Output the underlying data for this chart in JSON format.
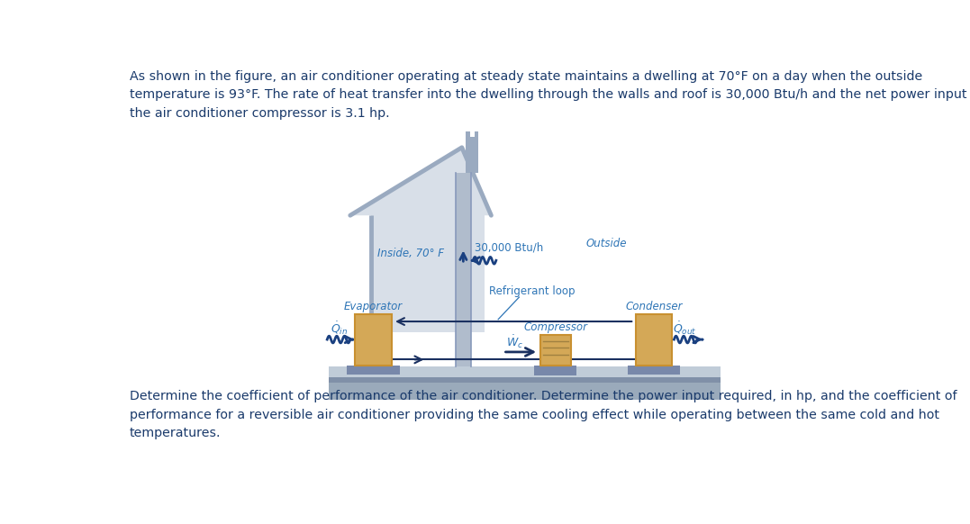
{
  "background_color": "#ffffff",
  "text_color": "#1a3a6b",
  "blue_label_color": "#2e75b6",
  "top_text": "As shown in the figure, an air conditioner operating at steady state maintains a dwelling at 70°F on a day when the outside\ntemperature is 93°F. The rate of heat transfer into the dwelling through the walls and roof is 30,000 Btu/h and the net power input to\nthe air conditioner compressor is 3.1 hp.",
  "bottom_text": "Determine the coefficient of performance of the air conditioner. Determine the power input required, in hp, and the coefficient of\nperformance for a reversible air conditioner providing the same cooling effect while operating between the same cold and hot\ntemperatures.",
  "inside_label": "Inside, 70° F",
  "outside_label": "Outside",
  "heat_transfer_label": "30,000 Btu/h",
  "refrigerant_loop_label": "Refrigerant loop",
  "evaporator_label": "Evaporator",
  "condenser_label": "Condenser",
  "compressor_label": "Compressor",
  "q_in_label": "$\\dot{Q}_{in}$",
  "q_out_label": "$\\dot{Q}_{out}$",
  "w_c_label": "$\\dot{W}_c$",
  "house_color": "#9aaac0",
  "house_fill": "#d8dfe8",
  "wall_color": "#8899bb",
  "floor_color": "#7a8fb5",
  "ground_color": "#aab8cc",
  "evap_cond_color": "#d4a857",
  "evap_cond_edge": "#c89030",
  "base_color": "#7888aa",
  "compressor_color": "#d4a857",
  "compressor_edge": "#c89030",
  "arrow_color": "#1a3060",
  "wavy_color": "#1a4080",
  "line_color": "#1a3060",
  "chimney_color": "#9aaac0",
  "pipe_color": "#9aaac0"
}
